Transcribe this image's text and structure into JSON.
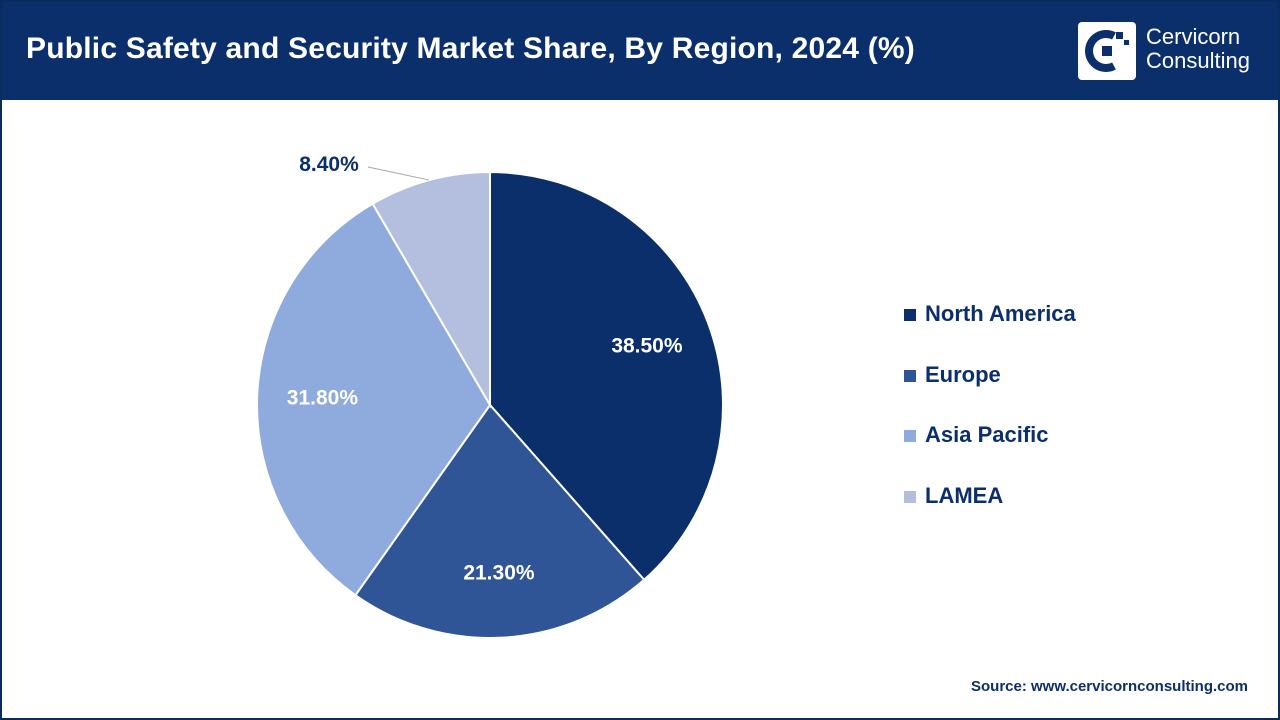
{
  "header": {
    "title": "Public Safety and Security Market Share, By Region, 2024 (%)",
    "brand_line1": "Cervicorn",
    "brand_line2": "Consulting",
    "logo_icon": "cervicorn-logo-icon"
  },
  "colors": {
    "header_bg": "#0b2f6b",
    "text_dark": "#0b2f6b"
  },
  "chart_data": {
    "type": "pie",
    "title": "Public Safety and Security Market Share, By Region, 2024 (%)",
    "categories": [
      "North America",
      "Europe",
      "Asia Pacific",
      "LAMEA"
    ],
    "values": [
      38.5,
      21.3,
      31.8,
      8.4
    ],
    "labels": [
      "38.50%",
      "21.30%",
      "31.80%",
      "8.40%"
    ],
    "colors": [
      "#0b2f6b",
      "#2f5597",
      "#8faadc",
      "#b4bfdf"
    ],
    "label_colors": [
      "#ffffff",
      "#ffffff",
      "#ffffff",
      "#0b2f6b"
    ],
    "start_angle": "12 o'clock",
    "direction": "clockwise",
    "legend_position": "right"
  },
  "legend": {
    "items": [
      {
        "label": "North America",
        "color": "#0b2f6b"
      },
      {
        "label": "Europe",
        "color": "#2f5597"
      },
      {
        "label": "Asia Pacific",
        "color": "#8faadc"
      },
      {
        "label": "LAMEA",
        "color": "#b4bfdf"
      }
    ]
  },
  "footer": {
    "source": "Source: www.cervicornconsulting.com"
  }
}
